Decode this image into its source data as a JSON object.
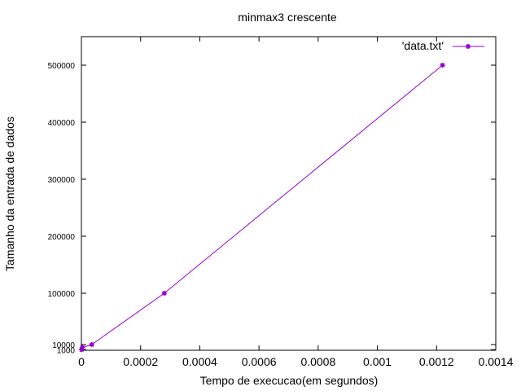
{
  "chart_data": {
    "type": "line",
    "title": "minmax3 crescente",
    "xlabel": "Tempo de execucao(em segundos)",
    "ylabel": "Tamanho da entrada de dados",
    "xlim": [
      0,
      0.0014
    ],
    "ylim": [
      0,
      550000
    ],
    "x_ticks": [
      0,
      0.0002,
      0.0004,
      0.0006,
      0.0008,
      0.001,
      0.0012,
      0.0014
    ],
    "x_tick_labels": [
      "0",
      "0.0002",
      "0.0004",
      "0.0006",
      "0.0008",
      "0.001",
      "0.0012",
      "0.0014"
    ],
    "y_ticks": [
      1000,
      10000,
      100000,
      200000,
      300000,
      400000,
      500000
    ],
    "y_tick_labels": [
      "1000",
      "10000",
      "100000",
      "200000",
      "300000",
      "400000",
      "500000"
    ],
    "legend_position": "top-right",
    "grid": false,
    "series": [
      {
        "name": "'data.txt'",
        "color": "#9400d3",
        "marker": "star",
        "x": [
          5e-07,
          3e-06,
          3.5e-05,
          0.00028,
          0.00122
        ],
        "y": [
          1000,
          5000,
          10000,
          100000,
          500000
        ]
      }
    ]
  }
}
